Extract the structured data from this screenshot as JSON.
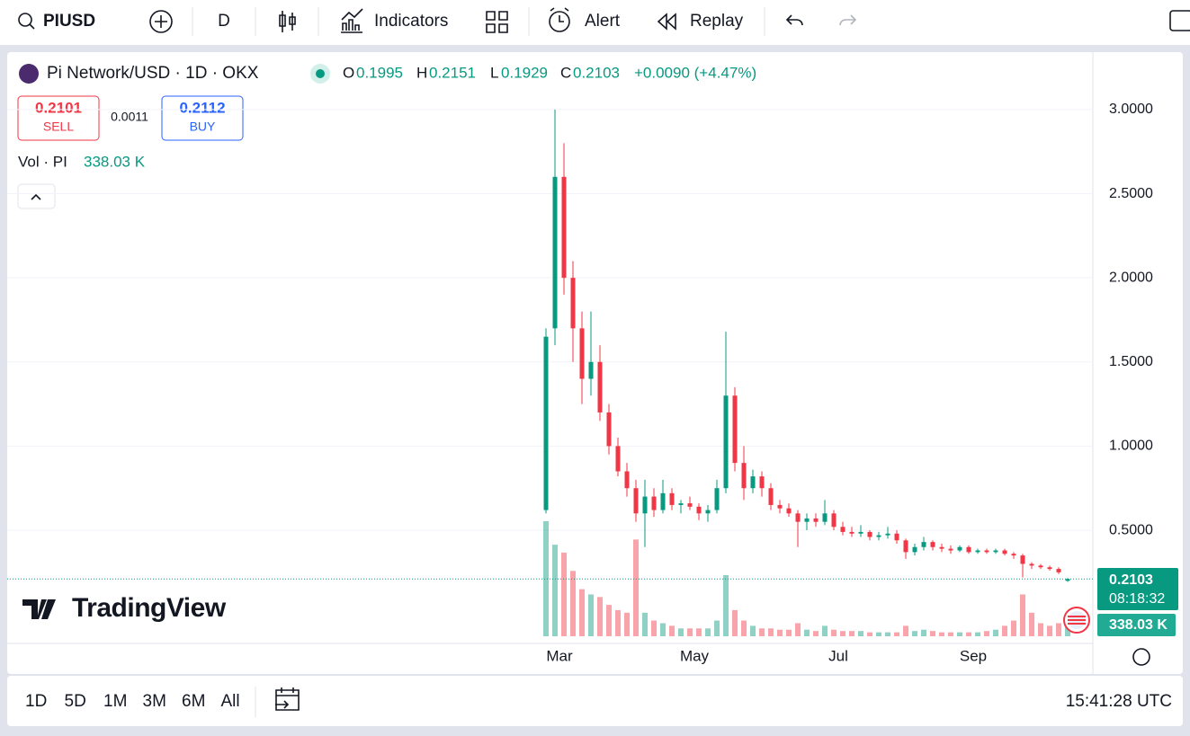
{
  "toolbar": {
    "symbol": "PIUSD",
    "interval": "D",
    "indicators": "Indicators",
    "alert": "Alert",
    "replay": "Replay"
  },
  "legend": {
    "title": "Pi Network/USD · 1D · OKX",
    "o": "O",
    "h": "H",
    "l": "L",
    "c": "C",
    "change": "+0.0090 (+4.47%)",
    "sell_price": "0.2101",
    "sell": "SELL",
    "spread": "0.0011",
    "buy_price": "0.2112",
    "buy": "BUY",
    "vol_title": "Vol · PI",
    "vol_value": "338.03 K",
    "countdown": "08:18:32"
  },
  "logo": "TradingView",
  "footer": {
    "ranges": [
      "1D",
      "5D",
      "1M",
      "3M",
      "6M",
      "All"
    ],
    "clock": "15:41:28 UTC"
  },
  "chart_data": {
    "type": "candlestick",
    "up_color": "#089981",
    "down_color": "#f23645",
    "grid": true,
    "categories": [
      null,
      null,
      "Mar",
      null,
      null,
      null,
      null,
      null,
      null,
      null,
      null,
      null,
      null,
      null,
      null,
      null,
      null,
      "May",
      null,
      null,
      null,
      null,
      null,
      null,
      null,
      null,
      null,
      null,
      null,
      null,
      null,
      null,
      null,
      "Jul",
      null,
      null,
      null,
      null,
      null,
      null,
      null,
      null,
      null,
      null,
      null,
      null,
      null,
      null,
      "Sep",
      null,
      null,
      null,
      null,
      null,
      null,
      null,
      null,
      null,
      null
    ],
    "open": [
      0.62,
      1.7,
      2.6,
      2.0,
      1.7,
      1.4,
      1.5,
      1.2,
      1.0,
      0.85,
      0.75,
      0.6,
      0.7,
      0.62,
      0.72,
      0.65,
      0.66,
      0.64,
      0.6,
      0.62,
      0.75,
      1.3,
      0.9,
      0.75,
      0.82,
      0.75,
      0.65,
      0.63,
      0.6,
      0.55,
      0.57,
      0.55,
      0.6,
      0.52,
      0.49,
      0.48,
      0.49,
      0.46,
      0.47,
      0.48,
      0.44,
      0.37,
      0.4,
      0.43,
      0.4,
      0.39,
      0.38,
      0.4,
      0.37,
      0.38,
      0.37,
      0.38,
      0.36,
      0.35,
      0.3,
      0.29,
      0.28,
      0.27,
      0.1995
    ],
    "high": [
      1.7,
      3.0,
      2.8,
      2.1,
      1.8,
      1.8,
      1.6,
      1.25,
      1.05,
      0.9,
      0.8,
      0.8,
      0.75,
      0.8,
      0.75,
      0.68,
      0.7,
      0.66,
      0.65,
      0.8,
      1.68,
      1.35,
      1.0,
      0.86,
      0.85,
      0.78,
      0.68,
      0.66,
      0.62,
      0.6,
      0.6,
      0.68,
      0.62,
      0.55,
      0.52,
      0.53,
      0.5,
      0.49,
      0.52,
      0.5,
      0.45,
      0.42,
      0.46,
      0.44,
      0.42,
      0.41,
      0.41,
      0.41,
      0.39,
      0.39,
      0.39,
      0.39,
      0.37,
      0.36,
      0.31,
      0.3,
      0.29,
      0.28,
      0.2151
    ],
    "low": [
      0.6,
      1.6,
      1.9,
      1.5,
      1.25,
      1.3,
      1.15,
      0.95,
      0.82,
      0.7,
      0.55,
      0.4,
      0.58,
      0.6,
      0.62,
      0.6,
      0.62,
      0.56,
      0.55,
      0.6,
      0.72,
      0.85,
      0.68,
      0.72,
      0.7,
      0.62,
      0.6,
      0.58,
      0.4,
      0.5,
      0.52,
      0.53,
      0.5,
      0.47,
      0.46,
      0.46,
      0.44,
      0.44,
      0.45,
      0.42,
      0.33,
      0.35,
      0.38,
      0.38,
      0.37,
      0.36,
      0.37,
      0.36,
      0.36,
      0.36,
      0.36,
      0.35,
      0.33,
      0.22,
      0.27,
      0.27,
      0.26,
      0.24,
      0.1929
    ],
    "close": [
      1.65,
      2.6,
      2.0,
      1.7,
      1.4,
      1.5,
      1.2,
      1.0,
      0.85,
      0.75,
      0.6,
      0.7,
      0.62,
      0.72,
      0.65,
      0.66,
      0.64,
      0.6,
      0.62,
      0.75,
      1.3,
      0.9,
      0.75,
      0.82,
      0.75,
      0.65,
      0.63,
      0.6,
      0.55,
      0.57,
      0.55,
      0.6,
      0.52,
      0.49,
      0.48,
      0.49,
      0.46,
      0.47,
      0.48,
      0.44,
      0.37,
      0.4,
      0.43,
      0.4,
      0.39,
      0.38,
      0.4,
      0.37,
      0.38,
      0.37,
      0.38,
      0.36,
      0.35,
      0.3,
      0.29,
      0.28,
      0.27,
      0.25,
      0.2103
    ],
    "volume": [
      4400,
      3500,
      3200,
      2500,
      1800,
      1600,
      1500,
      1200,
      1000,
      900,
      3700,
      900,
      600,
      500,
      400,
      300,
      300,
      300,
      300,
      600,
      2340,
      1000,
      600,
      400,
      300,
      300,
      250,
      250,
      500,
      250,
      200,
      400,
      250,
      200,
      200,
      200,
      150,
      150,
      150,
      150,
      400,
      200,
      250,
      200,
      150,
      150,
      150,
      150,
      150,
      200,
      250,
      400,
      600,
      1600,
      900,
      500,
      400,
      500,
      338.03
    ],
    "volume_lim": [
      0,
      5500
    ],
    "ylim": [
      -0.13,
      3.32
    ],
    "yticks": [
      {
        "value": 0.5,
        "label": "0.5000"
      },
      {
        "value": 1,
        "label": "1.0000"
      },
      {
        "value": 1.5,
        "label": "1.5000"
      },
      {
        "value": 2,
        "label": "2.0000"
      },
      {
        "value": 2.5,
        "label": "2.5000"
      },
      {
        "value": 3,
        "label": "3.0000"
      }
    ]
  }
}
